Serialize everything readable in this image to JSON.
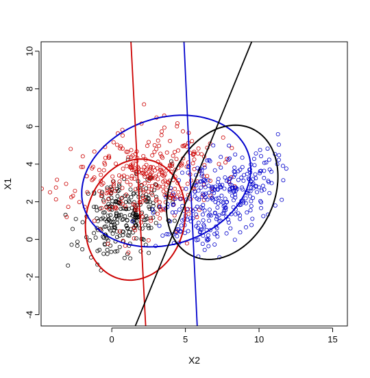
{
  "chart_data": {
    "type": "scatter",
    "title": "",
    "xlabel": "X2",
    "ylabel": "X1",
    "xlim": [
      -4.8,
      16.0
    ],
    "ylim": [
      -4.6,
      10.5
    ],
    "xticks": [
      0,
      5,
      10,
      15
    ],
    "yticks": [
      -4,
      -2,
      0,
      2,
      4,
      6,
      8,
      10
    ],
    "xtick_labels": [
      "0",
      "5",
      "10",
      "15"
    ],
    "ytick_labels": [
      "-4",
      "-2",
      "0",
      "2",
      "4",
      "6",
      "8",
      "10"
    ],
    "grid": false,
    "legend": "none",
    "marker": "open-circle",
    "clusters": [
      {
        "color": "#000000",
        "center": [
          0.8,
          1.3
        ],
        "sd": [
          1.4,
          1.1
        ],
        "corr": 0.3,
        "n": 260,
        "seed": 11
      },
      {
        "color": "#cc0000",
        "center": [
          2.3,
          3.2
        ],
        "sd": [
          2.4,
          1.3
        ],
        "corr": 0.1,
        "n": 330,
        "seed": 23
      },
      {
        "color": "#0000cc",
        "center": [
          7.3,
          2.3
        ],
        "sd": [
          1.9,
          1.3
        ],
        "corr": 0.45,
        "n": 320,
        "seed": 37
      }
    ],
    "ellipses": [
      {
        "color": "#cc0000",
        "center": [
          1.6,
          1.05
        ],
        "rx": 3.5,
        "ry": 3.1,
        "angle_deg": 32
      },
      {
        "color": "#0000cc",
        "center": [
          3.7,
          3.1
        ],
        "rx": 5.8,
        "ry": 3.4,
        "angle_deg": 10
      },
      {
        "color": "#000000",
        "center": [
          7.5,
          2.5
        ],
        "rx": 4.1,
        "ry": 3.2,
        "angle_deg": 38
      }
    ],
    "lines": [
      {
        "color": "#cc0000",
        "points": [
          [
            1.3,
            10.5
          ],
          [
            2.3,
            -4.6
          ]
        ]
      },
      {
        "color": "#0000cc",
        "points": [
          [
            4.9,
            10.5
          ],
          [
            5.8,
            -4.6
          ]
        ]
      },
      {
        "color": "#000000",
        "points": [
          [
            1.6,
            -4.6
          ],
          [
            9.5,
            10.5
          ]
        ]
      }
    ]
  }
}
